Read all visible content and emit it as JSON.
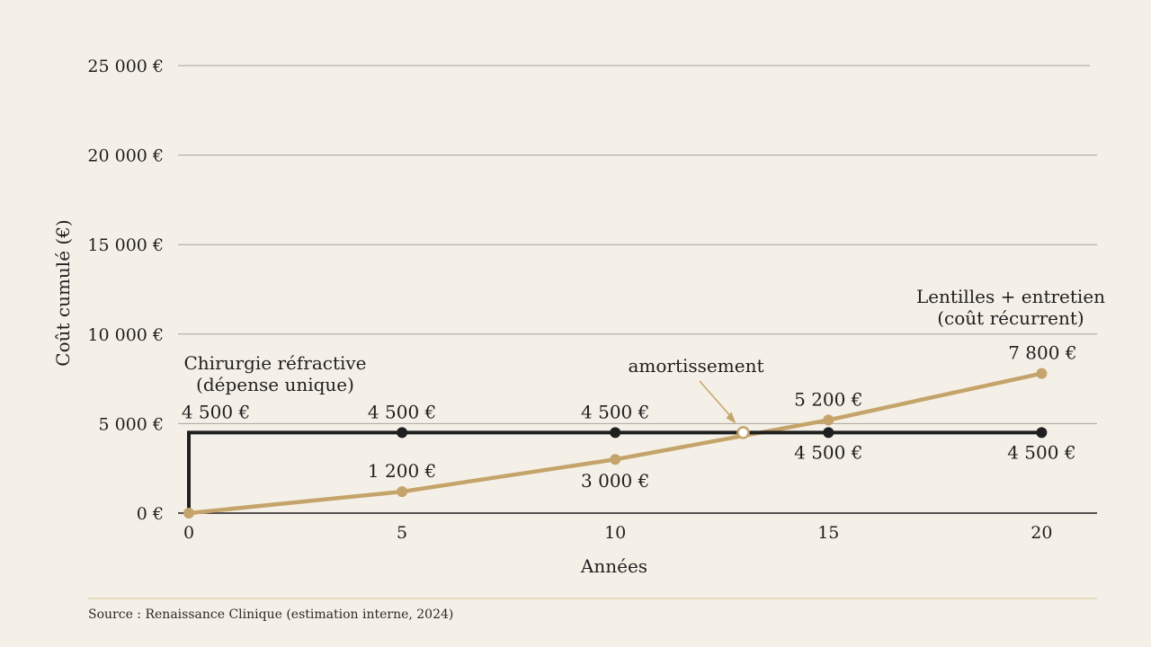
{
  "colors": {
    "background": "#f5f0e7",
    "grid": "#a8a39a",
    "axis": "#1f1f1f",
    "surgery": "#1f1f1f",
    "lenses": "#c4a46a",
    "source_rule": "#d8c79a"
  },
  "chart_data": {
    "type": "line",
    "title": "",
    "xlabel": "Années",
    "ylabel": "Coût cumulé (€)",
    "xlim": [
      0,
      21.5
    ],
    "ylim": [
      0,
      25000
    ],
    "x_ticks": [
      0,
      5,
      10,
      15,
      20
    ],
    "y_ticks": [
      0,
      5000,
      10000,
      15000,
      20000,
      25000
    ],
    "y_tick_labels": [
      "0 €",
      "5 000 €",
      "10 000 €",
      "15 000 €",
      "20 000 €",
      "25 000 €"
    ],
    "grid": true,
    "series": [
      {
        "name": "Chirurgie réfractive (dépense unique)",
        "name_lines": [
          "Chirurgie réfractive",
          "(dépense unique)"
        ],
        "color_key": "surgery",
        "x": [
          0,
          0,
          5,
          10,
          15,
          20
        ],
        "y": [
          0,
          4500,
          4500,
          4500,
          4500,
          4500
        ],
        "labelled_points": [
          {
            "x": 0,
            "y": 4500,
            "label": "4 500 €"
          },
          {
            "x": 5,
            "y": 4500,
            "label": "4 500 €"
          },
          {
            "x": 10,
            "y": 4500,
            "label": "4 500 €"
          },
          {
            "x": 15,
            "y": 4500,
            "label": "4 500 €"
          },
          {
            "x": 20,
            "y": 4500,
            "label": "4 500 €"
          }
        ]
      },
      {
        "name": "Lentilles + entretien (coût récurrent)",
        "name_lines": [
          "Lentilles + entretien",
          "(coût récurrent)"
        ],
        "color_key": "lenses",
        "x": [
          0,
          5,
          10,
          15,
          20
        ],
        "y": [
          0,
          1200,
          3000,
          5200,
          7800
        ],
        "labelled_points": [
          {
            "x": 5,
            "y": 1200,
            "label": "1 200 €"
          },
          {
            "x": 10,
            "y": 3000,
            "label": "3 000 €"
          },
          {
            "x": 15,
            "y": 5200,
            "label": "5 200 €"
          },
          {
            "x": 20,
            "y": 7800,
            "label": "7 800 €"
          }
        ]
      }
    ],
    "annotations": [
      {
        "text": "amortissement",
        "x": 13,
        "y": 4500
      }
    ]
  },
  "source": "Source : Renaissance Clinique (estimation interne, 2024)"
}
